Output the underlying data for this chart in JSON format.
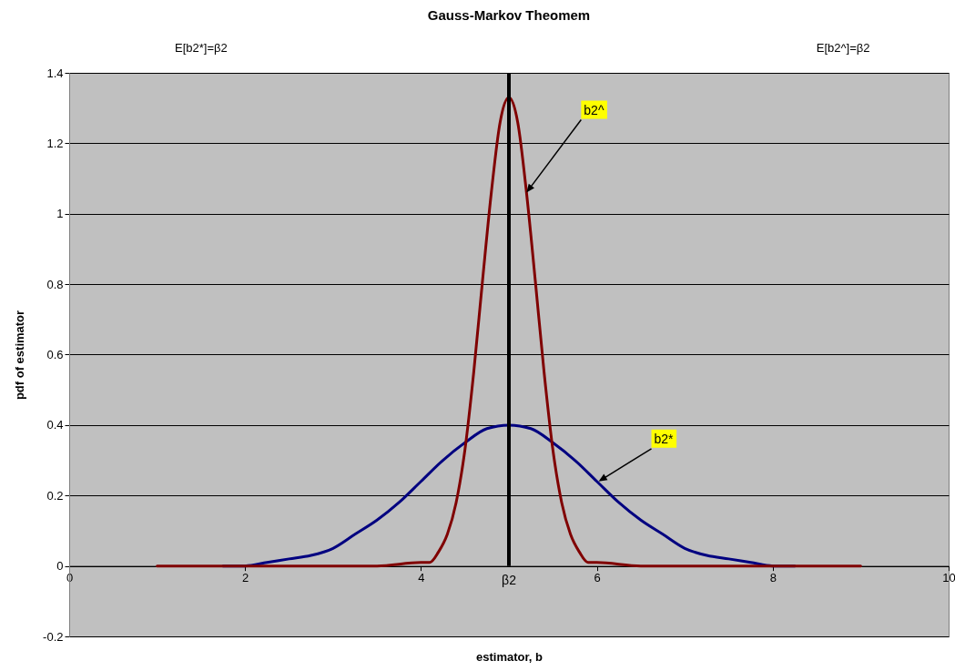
{
  "chart_data": {
    "type": "line",
    "title": "Gauss-Markov Theomem",
    "xlabel": "estimator, b",
    "ylabel": "pdf of estimator",
    "xlim": [
      0,
      10
    ],
    "xticks": [
      0,
      2,
      4,
      6,
      8,
      10
    ],
    "ylim": [
      -0.2,
      1.4
    ],
    "yticks": [
      -0.2,
      0,
      0.2,
      0.4,
      0.6,
      0.8,
      1,
      1.2,
      1.4
    ],
    "grid": "y",
    "legend": false,
    "marker": "none",
    "line_style": "solid",
    "series": [
      {
        "color": "#000080",
        "x": [
          1.75,
          2,
          2.25,
          2.5,
          2.75,
          3,
          3.25,
          3.5,
          3.75,
          4,
          4.25,
          4.5,
          4.75,
          5,
          5.25,
          5.5,
          5.75,
          6,
          6.25,
          6.5,
          6.75,
          7,
          7.25,
          7.5,
          7.75,
          8,
          8.25
        ],
        "values": [
          0,
          0,
          0.01,
          0.02,
          0.03,
          0.05,
          0.09,
          0.13,
          0.18,
          0.24,
          0.3,
          0.35,
          0.39,
          0.4,
          0.39,
          0.35,
          0.3,
          0.24,
          0.18,
          0.13,
          0.09,
          0.05,
          0.03,
          0.02,
          0.01,
          0,
          0
        ]
      },
      {
        "color": "#800000",
        "x": [
          1,
          2,
          3,
          3.5,
          4,
          4.1,
          4.2,
          4.3,
          4.4,
          4.5,
          4.6,
          4.7,
          4.8,
          4.9,
          5,
          5.1,
          5.2,
          5.3,
          5.4,
          5.5,
          5.6,
          5.7,
          5.8,
          5.9,
          6,
          6.5,
          7,
          8,
          9
        ],
        "values": [
          0,
          0,
          0,
          0,
          0.01,
          0.01,
          0.04,
          0.09,
          0.18,
          0.33,
          0.55,
          0.81,
          1.06,
          1.26,
          1.33,
          1.26,
          1.06,
          0.81,
          0.55,
          0.33,
          0.18,
          0.09,
          0.04,
          0.01,
          0.01,
          0,
          0,
          0,
          0
        ]
      }
    ],
    "ref_lines": [
      {
        "axis": "x",
        "value": 5,
        "label": "β2",
        "color": "#000000"
      }
    ],
    "annotations": [
      "E[b2*]=β2",
      "E[b2^]=β2",
      {
        "text": "b2^",
        "x": 5.2,
        "y": 1.06
      },
      {
        "text": "b2*",
        "x": 6.02,
        "y": 0.24
      }
    ]
  }
}
